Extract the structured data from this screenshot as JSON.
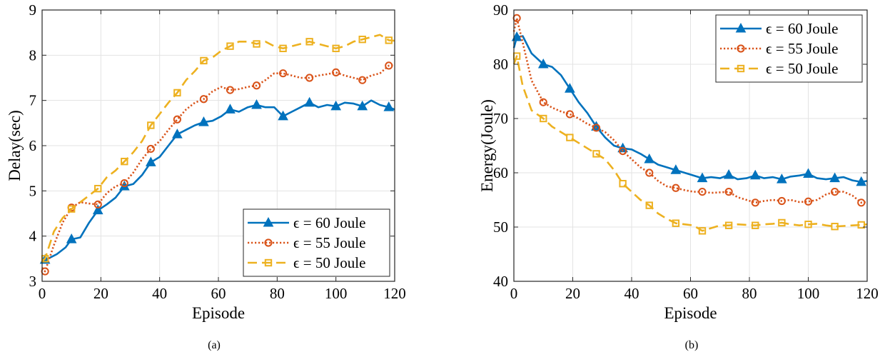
{
  "figure": {
    "panels": [
      "(a)",
      "(b)"
    ]
  },
  "chart_data": [
    {
      "type": "line",
      "caption": "(a)",
      "xlabel": "Episode",
      "ylabel": "Delay(sec)",
      "xlim": [
        0,
        120
      ],
      "ylim": [
        3,
        9
      ],
      "xticks": [
        0,
        20,
        40,
        60,
        80,
        100,
        120
      ],
      "yticks": [
        3,
        4,
        5,
        6,
        7,
        8,
        9
      ],
      "grid": true,
      "legend_position": "bottom-right",
      "series": [
        {
          "name": "ϵ = 60 Joule",
          "color": "#0072BD",
          "style": "solid",
          "marker": "triangle",
          "marker_x": [
            1,
            10,
            19,
            28,
            37,
            46,
            55,
            64,
            73,
            82,
            91,
            100,
            109,
            118
          ],
          "x": [
            0,
            2,
            5,
            8,
            10,
            13,
            16,
            19,
            22,
            25,
            28,
            31,
            34,
            37,
            40,
            43,
            46,
            49,
            52,
            55,
            58,
            61,
            64,
            67,
            70,
            73,
            76,
            79,
            82,
            85,
            88,
            91,
            94,
            97,
            100,
            103,
            106,
            109,
            112,
            115,
            118,
            120
          ],
          "y": [
            3.45,
            3.5,
            3.6,
            3.75,
            3.93,
            3.97,
            4.3,
            4.57,
            4.7,
            4.85,
            5.1,
            5.15,
            5.35,
            5.63,
            5.75,
            6.0,
            6.25,
            6.35,
            6.45,
            6.52,
            6.55,
            6.65,
            6.8,
            6.75,
            6.85,
            6.9,
            6.85,
            6.85,
            6.65,
            6.75,
            6.85,
            6.95,
            6.85,
            6.9,
            6.87,
            6.95,
            6.93,
            6.87,
            7.0,
            6.9,
            6.85,
            6.8
          ]
        },
        {
          "name": "ϵ = 55 Joule",
          "color": "#D95319",
          "style": "dotted",
          "marker": "circle",
          "marker_x": [
            1,
            10,
            19,
            28,
            37,
            46,
            55,
            64,
            73,
            82,
            91,
            100,
            109,
            118
          ],
          "x": [
            0,
            1,
            4,
            7,
            10,
            13,
            16,
            19,
            22,
            25,
            28,
            31,
            34,
            37,
            40,
            43,
            46,
            49,
            52,
            55,
            58,
            61,
            64,
            67,
            70,
            73,
            76,
            79,
            82,
            85,
            88,
            91,
            94,
            97,
            100,
            103,
            106,
            109,
            112,
            115,
            118,
            120
          ],
          "y": [
            3.3,
            3.22,
            3.8,
            4.3,
            4.63,
            4.75,
            4.72,
            4.7,
            4.95,
            5.1,
            5.17,
            5.4,
            5.7,
            5.93,
            6.1,
            6.35,
            6.58,
            6.8,
            6.95,
            7.03,
            7.2,
            7.3,
            7.23,
            7.25,
            7.3,
            7.33,
            7.45,
            7.6,
            7.6,
            7.55,
            7.5,
            7.5,
            7.55,
            7.58,
            7.62,
            7.55,
            7.5,
            7.45,
            7.55,
            7.6,
            7.77,
            7.78
          ]
        },
        {
          "name": "ϵ = 50 Joule",
          "color": "#EDB120",
          "style": "dashed",
          "marker": "square",
          "marker_x": [
            1,
            10,
            19,
            28,
            37,
            46,
            55,
            64,
            73,
            82,
            91,
            100,
            109,
            118
          ],
          "x": [
            0,
            1,
            4,
            7,
            10,
            13,
            16,
            19,
            22,
            25,
            28,
            31,
            34,
            37,
            40,
            43,
            46,
            49,
            52,
            55,
            58,
            61,
            64,
            67,
            70,
            73,
            76,
            79,
            82,
            85,
            88,
            91,
            94,
            97,
            100,
            103,
            106,
            109,
            112,
            115,
            118,
            120
          ],
          "y": [
            3.45,
            3.5,
            4.1,
            4.4,
            4.6,
            4.75,
            4.9,
            5.05,
            5.3,
            5.45,
            5.65,
            5.85,
            6.1,
            6.45,
            6.7,
            6.95,
            7.17,
            7.45,
            7.65,
            7.88,
            7.95,
            8.1,
            8.2,
            8.3,
            8.3,
            8.25,
            8.3,
            8.2,
            8.15,
            8.2,
            8.25,
            8.3,
            8.25,
            8.2,
            8.15,
            8.2,
            8.3,
            8.35,
            8.4,
            8.45,
            8.33,
            8.32
          ]
        }
      ]
    },
    {
      "type": "line",
      "caption": "(b)",
      "xlabel": "Episode",
      "ylabel": "Energy(Joule)",
      "xlim": [
        0,
        120
      ],
      "ylim": [
        40,
        90
      ],
      "xticks": [
        0,
        20,
        40,
        60,
        80,
        100,
        120
      ],
      "yticks": [
        40,
        50,
        60,
        70,
        80,
        90
      ],
      "grid": true,
      "legend_position": "top-right",
      "series": [
        {
          "name": "ϵ = 60 Joule",
          "color": "#0072BD",
          "style": "solid",
          "marker": "triangle",
          "marker_x": [
            1,
            10,
            19,
            28,
            37,
            46,
            55,
            64,
            73,
            82,
            91,
            100,
            109,
            118
          ],
          "x": [
            0,
            1,
            3,
            6,
            10,
            13,
            16,
            19,
            22,
            25,
            28,
            31,
            34,
            37,
            40,
            43,
            46,
            49,
            52,
            55,
            58,
            61,
            64,
            67,
            70,
            73,
            76,
            79,
            82,
            85,
            88,
            91,
            94,
            97,
            100,
            103,
            106,
            109,
            112,
            115,
            118,
            120
          ],
          "y": [
            83.0,
            85.0,
            85.2,
            82.0,
            80.0,
            79.5,
            78.0,
            75.5,
            73.0,
            71.0,
            68.5,
            66.5,
            65.0,
            64.5,
            64.3,
            63.5,
            62.5,
            61.5,
            61.0,
            60.5,
            60.0,
            59.5,
            59.0,
            59.2,
            59.0,
            59.6,
            58.8,
            59.0,
            59.5,
            59.0,
            59.2,
            58.8,
            59.3,
            59.5,
            59.8,
            59.0,
            58.8,
            59.0,
            59.2,
            58.6,
            58.3,
            58.5
          ]
        },
        {
          "name": "ϵ = 55 Joule",
          "color": "#D95319",
          "style": "dotted",
          "marker": "circle",
          "marker_x": [
            1,
            10,
            19,
            28,
            37,
            46,
            55,
            64,
            73,
            82,
            91,
            100,
            109,
            118
          ],
          "x": [
            0,
            1,
            3,
            6,
            10,
            13,
            16,
            19,
            22,
            25,
            28,
            31,
            34,
            37,
            40,
            43,
            46,
            49,
            52,
            55,
            58,
            61,
            64,
            67,
            70,
            73,
            76,
            79,
            82,
            85,
            88,
            91,
            94,
            97,
            100,
            103,
            106,
            109,
            112,
            115,
            118,
            120
          ],
          "y": [
            86.0,
            88.5,
            84.0,
            77.0,
            73.0,
            72.0,
            71.3,
            70.8,
            70.0,
            69.0,
            68.3,
            67.5,
            66.0,
            64.0,
            62.5,
            61.0,
            60.0,
            58.5,
            57.5,
            57.2,
            56.8,
            56.5,
            56.5,
            56.3,
            56.4,
            56.5,
            55.5,
            55.0,
            54.5,
            54.8,
            55.0,
            54.8,
            55.0,
            54.6,
            54.7,
            55.0,
            56.0,
            56.5,
            56.5,
            55.8,
            54.5,
            54.6
          ]
        },
        {
          "name": "ϵ = 50 Joule",
          "color": "#EDB120",
          "style": "dashed",
          "marker": "square",
          "marker_x": [
            1,
            10,
            19,
            28,
            37,
            46,
            55,
            64,
            73,
            82,
            91,
            100,
            109,
            118
          ],
          "x": [
            0,
            1,
            3,
            6,
            10,
            13,
            16,
            19,
            22,
            25,
            28,
            31,
            34,
            37,
            40,
            43,
            46,
            49,
            52,
            55,
            58,
            61,
            64,
            67,
            70,
            73,
            76,
            79,
            82,
            85,
            88,
            91,
            94,
            97,
            100,
            103,
            106,
            109,
            112,
            115,
            118,
            120
          ],
          "y": [
            80.0,
            81.5,
            76.0,
            71.5,
            70.0,
            68.5,
            67.5,
            66.5,
            65.5,
            64.5,
            63.5,
            62.5,
            60.5,
            58.0,
            56.5,
            55.0,
            54.0,
            52.5,
            51.5,
            50.7,
            50.5,
            50.3,
            49.3,
            49.8,
            50.3,
            50.3,
            50.5,
            50.4,
            50.3,
            50.5,
            50.6,
            50.8,
            50.5,
            50.3,
            50.5,
            50.6,
            50.3,
            50.1,
            50.2,
            50.3,
            50.4,
            50.5
          ]
        }
      ]
    }
  ]
}
